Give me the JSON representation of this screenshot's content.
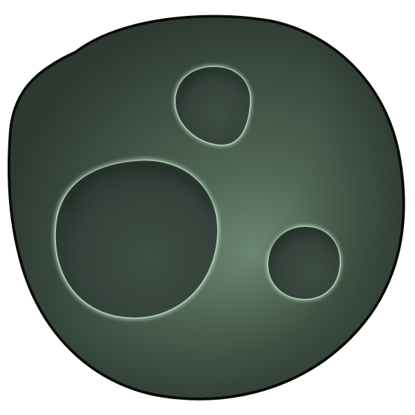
{
  "image": {
    "subject": "asteroid-rock",
    "background_color": "#ffffff",
    "colors": {
      "outline": "#0a0d0b",
      "rock_dark": "#2f3c33",
      "rock_mid": "#4a5e4f",
      "rock_light": "#6f8b75",
      "crater_floor": "#35433a",
      "crater_rim_highlight": "#b8d3bd"
    },
    "crater_count": 3
  }
}
